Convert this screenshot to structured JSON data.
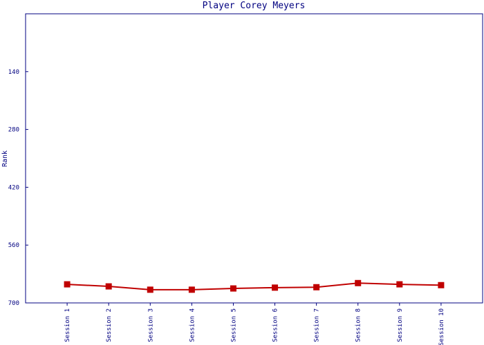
{
  "chart_data": {
    "type": "line",
    "title": "Player Corey Meyers",
    "y_label": "Rank",
    "categories": [
      "Session 1",
      "Session 2",
      "Session 3",
      "Session 4",
      "Session 5",
      "Session 6",
      "Session 7",
      "Session 8",
      "Session 9",
      "Session 10"
    ],
    "series": [
      {
        "name": "Rank",
        "color": "#c00000",
        "values": [
          655,
          660,
          668,
          668,
          665,
          663,
          662,
          652,
          655,
          657
        ]
      }
    ],
    "ylim": [
      0,
      700
    ],
    "yticks": [
      140,
      280,
      420,
      560,
      700
    ],
    "y_inverted": true
  }
}
